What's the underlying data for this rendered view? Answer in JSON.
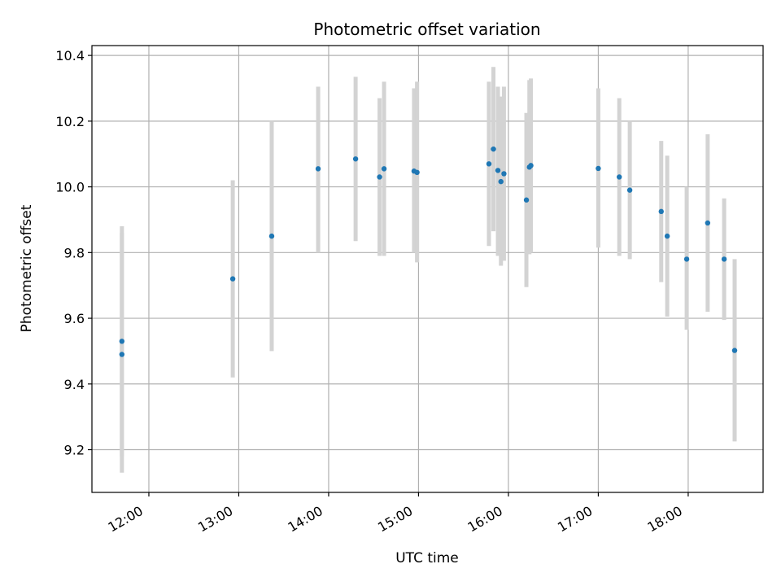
{
  "chart_data": {
    "type": "scatter",
    "title": "Photometric offset variation",
    "xlabel": "UTC time",
    "ylabel": "Photometric offset",
    "x_ticks": [
      "12:00",
      "13:00",
      "14:00",
      "15:00",
      "16:00",
      "17:00",
      "18:00"
    ],
    "y_ticks": [
      "9.2",
      "9.4",
      "9.6",
      "9.8",
      "10.0",
      "10.2",
      "10.4"
    ],
    "xlim": [
      "11:22",
      "18:50"
    ],
    "ylim": [
      9.07,
      10.43
    ],
    "grid": true,
    "series": [
      {
        "points": [
          {
            "x": "11:42",
            "y": 9.53,
            "ylow": 9.18,
            "yhigh": 9.88
          },
          {
            "x": "11:42",
            "y": 9.49,
            "ylow": 9.13,
            "yhigh": 9.86
          },
          {
            "x": "12:56",
            "y": 9.72,
            "ylow": 9.42,
            "yhigh": 10.02
          },
          {
            "x": "13:22",
            "y": 9.85,
            "ylow": 9.5,
            "yhigh": 10.2
          },
          {
            "x": "13:53",
            "y": 10.055,
            "ylow": 9.8,
            "yhigh": 10.305
          },
          {
            "x": "14:18",
            "y": 10.085,
            "ylow": 9.835,
            "yhigh": 10.335
          },
          {
            "x": "14:34",
            "y": 10.03,
            "ylow": 9.79,
            "yhigh": 10.27
          },
          {
            "x": "14:37",
            "y": 10.055,
            "ylow": 9.79,
            "yhigh": 10.32
          },
          {
            "x": "14:57",
            "y": 10.048,
            "ylow": 9.8,
            "yhigh": 10.3
          },
          {
            "x": "14:59",
            "y": 10.044,
            "ylow": 9.77,
            "yhigh": 10.32
          },
          {
            "x": "15:47",
            "y": 10.07,
            "ylow": 9.82,
            "yhigh": 10.32
          },
          {
            "x": "15:50",
            "y": 10.115,
            "ylow": 9.865,
            "yhigh": 10.365
          },
          {
            "x": "15:53",
            "y": 10.05,
            "ylow": 9.79,
            "yhigh": 10.305
          },
          {
            "x": "15:55",
            "y": 10.016,
            "ylow": 9.76,
            "yhigh": 10.275
          },
          {
            "x": "15:57",
            "y": 10.04,
            "ylow": 9.775,
            "yhigh": 10.305
          },
          {
            "x": "16:12",
            "y": 9.96,
            "ylow": 9.695,
            "yhigh": 10.225
          },
          {
            "x": "16:14",
            "y": 10.06,
            "ylow": 9.795,
            "yhigh": 10.325
          },
          {
            "x": "16:15",
            "y": 10.065,
            "ylow": 9.8,
            "yhigh": 10.33
          },
          {
            "x": "17:00",
            "y": 10.056,
            "ylow": 9.815,
            "yhigh": 10.3
          },
          {
            "x": "17:14",
            "y": 10.03,
            "ylow": 9.79,
            "yhigh": 10.27
          },
          {
            "x": "17:21",
            "y": 9.99,
            "ylow": 9.78,
            "yhigh": 10.2
          },
          {
            "x": "17:42",
            "y": 9.925,
            "ylow": 9.71,
            "yhigh": 10.14
          },
          {
            "x": "17:46",
            "y": 9.85,
            "ylow": 9.605,
            "yhigh": 10.095
          },
          {
            "x": "17:59",
            "y": 9.78,
            "ylow": 9.565,
            "yhigh": 10.0
          },
          {
            "x": "18:13",
            "y": 9.89,
            "ylow": 9.62,
            "yhigh": 10.16
          },
          {
            "x": "18:24",
            "y": 9.78,
            "ylow": 9.595,
            "yhigh": 9.965
          },
          {
            "x": "18:31",
            "y": 9.502,
            "ylow": 9.225,
            "yhigh": 9.78
          }
        ]
      }
    ],
    "colors": {
      "point": "#1f77b4",
      "errorbar": "#d3d3d3",
      "grid": "#b0b0b0",
      "axes": "#000000"
    }
  }
}
